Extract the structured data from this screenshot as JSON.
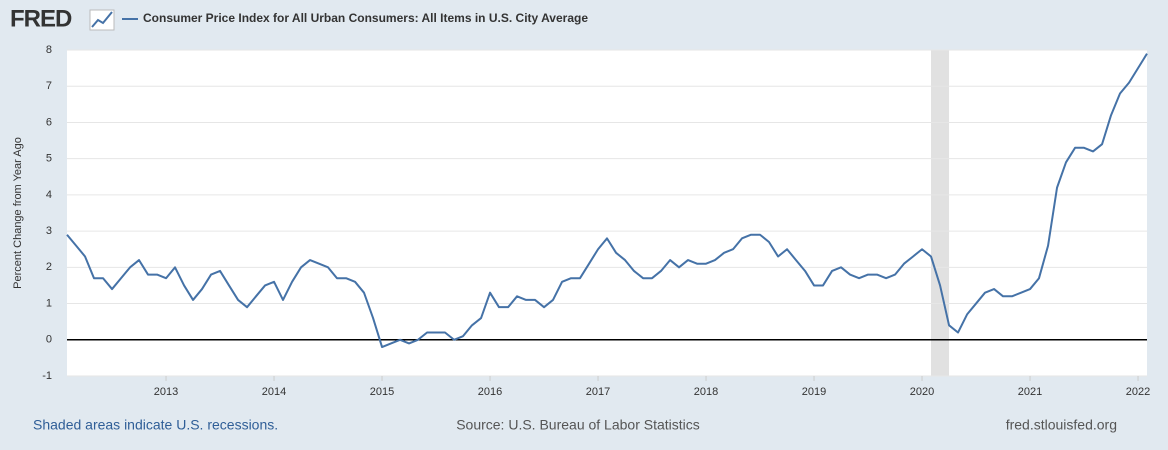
{
  "chart_data": {
    "type": "line",
    "logo": "FRED",
    "y_label": "Percent Change from Year Ago",
    "footer_left": "Shaded areas indicate U.S. recessions.",
    "footer_center": "Source: U.S. Bureau of Labor Statistics",
    "footer_right": "fred.stlouisfed.org",
    "x": [
      2012.083,
      2012.167,
      2012.25,
      2012.333,
      2012.417,
      2012.5,
      2012.583,
      2012.667,
      2012.75,
      2012.833,
      2012.917,
      2013,
      2013.083,
      2013.167,
      2013.25,
      2013.333,
      2013.417,
      2013.5,
      2013.583,
      2013.667,
      2013.75,
      2013.833,
      2013.917,
      2014,
      2014.083,
      2014.167,
      2014.25,
      2014.333,
      2014.417,
      2014.5,
      2014.583,
      2014.667,
      2014.75,
      2014.833,
      2014.917,
      2015,
      2015.083,
      2015.167,
      2015.25,
      2015.333,
      2015.417,
      2015.5,
      2015.583,
      2015.667,
      2015.75,
      2015.833,
      2015.917,
      2016,
      2016.083,
      2016.167,
      2016.25,
      2016.333,
      2016.417,
      2016.5,
      2016.583,
      2016.667,
      2016.75,
      2016.833,
      2016.917,
      2017,
      2017.083,
      2017.167,
      2017.25,
      2017.333,
      2017.417,
      2017.5,
      2017.583,
      2017.667,
      2017.75,
      2017.833,
      2017.917,
      2018,
      2018.083,
      2018.167,
      2018.25,
      2018.333,
      2018.417,
      2018.5,
      2018.583,
      2018.667,
      2018.75,
      2018.833,
      2018.917,
      2019,
      2019.083,
      2019.167,
      2019.25,
      2019.333,
      2019.417,
      2019.5,
      2019.583,
      2019.667,
      2019.75,
      2019.833,
      2019.917,
      2020,
      2020.083,
      2020.167,
      2020.25,
      2020.333,
      2020.417,
      2020.5,
      2020.583,
      2020.667,
      2020.75,
      2020.833,
      2020.917,
      2021,
      2021.083,
      2021.167,
      2021.25,
      2021.333,
      2021.417,
      2021.5,
      2021.583,
      2021.667,
      2021.75,
      2021.833,
      2021.917,
      2022,
      2022.083
    ],
    "series": [
      {
        "name": "Consumer Price Index for All Urban Consumers: All Items in U.S. City Average",
        "color": "#4572a7",
        "values": [
          2.9,
          2.6,
          2.3,
          1.7,
          1.7,
          1.4,
          1.7,
          2.0,
          2.2,
          1.8,
          1.8,
          1.7,
          2.0,
          1.5,
          1.1,
          1.4,
          1.8,
          1.9,
          1.5,
          1.1,
          0.9,
          1.2,
          1.5,
          1.6,
          1.1,
          1.6,
          2.0,
          2.2,
          2.1,
          2.0,
          1.7,
          1.7,
          1.6,
          1.3,
          0.6,
          -0.2,
          -0.1,
          0.0,
          -0.1,
          0.0,
          0.2,
          0.2,
          0.2,
          0.0,
          0.1,
          0.4,
          0.6,
          1.3,
          0.9,
          0.9,
          1.2,
          1.1,
          1.1,
          0.9,
          1.1,
          1.6,
          1.7,
          1.7,
          2.1,
          2.5,
          2.8,
          2.4,
          2.2,
          1.9,
          1.7,
          1.7,
          1.9,
          2.2,
          2.0,
          2.2,
          2.1,
          2.1,
          2.2,
          2.4,
          2.5,
          2.8,
          2.9,
          2.9,
          2.7,
          2.3,
          2.5,
          2.2,
          1.9,
          1.5,
          1.5,
          1.9,
          2.0,
          1.8,
          1.7,
          1.8,
          1.8,
          1.7,
          1.8,
          2.1,
          2.3,
          2.5,
          2.3,
          1.5,
          0.4,
          0.2,
          0.7,
          1.0,
          1.3,
          1.4,
          1.2,
          1.2,
          1.3,
          1.4,
          1.7,
          2.6,
          4.2,
          4.9,
          5.3,
          5.3,
          5.2,
          5.4,
          6.2,
          6.8,
          7.1,
          7.5,
          7.9
        ]
      }
    ],
    "recessions": [
      [
        2020.083,
        2020.25
      ]
    ],
    "recession_color": "#e1e1e1",
    "xlim": [
      2012.083,
      2022.083
    ],
    "xticks": [
      2013,
      2014,
      2015,
      2016,
      2017,
      2018,
      2019,
      2020,
      2021,
      2022
    ],
    "ylim": [
      -1,
      8
    ],
    "yticks": [
      -1,
      0,
      1,
      2,
      3,
      4,
      5,
      6,
      7,
      8
    ],
    "grid": true
  }
}
